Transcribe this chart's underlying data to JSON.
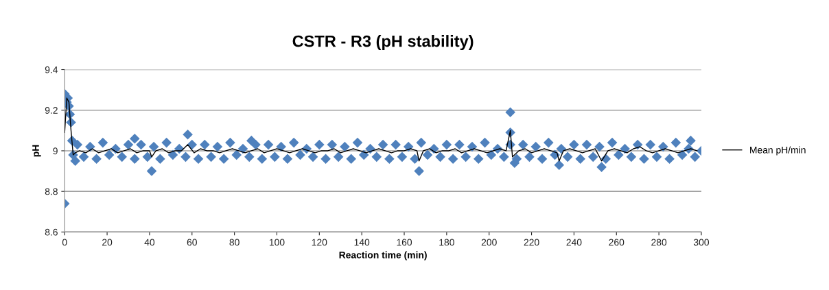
{
  "chart_data": {
    "type": "scatter",
    "title": "CSTR - R3 (pH stability)",
    "xlabel": "Reaction time (min)",
    "ylabel": "pH",
    "xlim": [
      0,
      300
    ],
    "xticks": [
      0,
      20,
      40,
      60,
      80,
      100,
      120,
      140,
      160,
      180,
      200,
      220,
      240,
      260,
      280,
      300
    ],
    "ylim": [
      8.6,
      9.4
    ],
    "yticks": [
      8.6,
      8.8,
      {
        "value": 9,
        "label": "9"
      },
      9.2,
      9.4
    ],
    "grid": "y",
    "legend": "right",
    "series": [
      {
        "color": "#4f81bd",
        "marker": "diamond",
        "x": [
          6,
          9,
          12,
          15,
          18,
          21,
          24,
          27,
          30,
          33,
          36,
          39,
          42,
          45,
          48,
          51,
          54,
          57,
          60,
          63,
          66,
          69,
          72,
          75,
          78,
          81,
          84,
          87,
          90,
          93,
          96,
          99,
          102,
          105,
          108,
          111,
          114,
          117,
          120,
          123,
          126,
          129,
          132,
          135,
          138,
          141,
          144,
          147,
          150,
          153,
          156,
          159,
          162,
          165,
          168,
          171,
          174,
          177,
          180,
          183,
          186,
          189,
          192,
          195,
          198,
          201,
          204,
          207,
          210,
          213,
          216,
          219,
          222,
          225,
          228,
          231,
          234,
          237,
          240,
          243,
          246,
          249,
          252,
          255,
          258,
          261,
          264,
          267,
          270,
          273,
          276,
          279,
          282,
          285,
          288,
          291,
          294,
          297,
          0,
          0,
          1,
          1.5,
          2,
          2.5,
          3,
          3.5,
          4,
          5,
          41,
          58,
          33,
          88,
          167,
          210,
          210,
          212,
          233,
          253,
          295,
          300
        ],
        "values": [
          9.03,
          8.97,
          9.02,
          8.96,
          9.04,
          8.98,
          9.01,
          8.97,
          9.03,
          8.96,
          9.03,
          8.97,
          9.02,
          8.96,
          9.04,
          8.98,
          9.01,
          8.97,
          9.03,
          8.96,
          9.03,
          8.97,
          9.02,
          8.96,
          9.04,
          8.98,
          9.01,
          8.97,
          9.03,
          8.96,
          9.03,
          8.97,
          9.02,
          8.96,
          9.04,
          8.98,
          9.01,
          8.97,
          9.03,
          8.96,
          9.03,
          8.97,
          9.02,
          8.96,
          9.04,
          8.98,
          9.01,
          8.97,
          9.03,
          8.96,
          9.03,
          8.97,
          9.02,
          8.96,
          9.04,
          8.98,
          9.01,
          8.97,
          9.03,
          8.96,
          9.03,
          8.97,
          9.02,
          8.96,
          9.04,
          8.98,
          9.01,
          8.97,
          9.03,
          8.96,
          9.03,
          8.97,
          9.02,
          8.96,
          9.04,
          8.98,
          9.01,
          8.97,
          9.03,
          8.96,
          9.03,
          8.97,
          9.02,
          8.96,
          9.04,
          8.98,
          9.01,
          8.97,
          9.03,
          8.96,
          9.03,
          8.97,
          9.02,
          8.96,
          9.04,
          8.98,
          9.01,
          8.97,
          9.28,
          8.74,
          9.24,
          9.26,
          9.22,
          9.18,
          9.14,
          9.05,
          8.98,
          8.95,
          8.9,
          9.08,
          9.06,
          9.05,
          8.9,
          9.19,
          9.09,
          8.94,
          8.93,
          8.92,
          9.05,
          9.0
        ]
      },
      {
        "type": "line",
        "name": "Mean pH/min",
        "color": "#000000",
        "marker": "none",
        "line_style": "solid",
        "x": [
          0,
          1,
          2,
          3,
          4,
          5,
          7,
          10,
          13,
          16,
          19,
          22,
          25,
          28,
          31,
          34,
          37,
          40,
          41,
          43,
          46,
          49,
          52,
          55,
          58,
          61,
          64,
          67,
          70,
          73,
          76,
          79,
          82,
          85,
          88,
          91,
          94,
          97,
          100,
          103,
          106,
          109,
          112,
          115,
          118,
          121,
          124,
          127,
          130,
          133,
          136,
          139,
          142,
          145,
          148,
          151,
          154,
          157,
          160,
          163,
          166,
          167,
          169,
          172,
          175,
          178,
          181,
          184,
          187,
          190,
          193,
          196,
          199,
          202,
          205,
          208,
          210,
          211,
          214,
          217,
          220,
          223,
          226,
          229,
          232,
          233,
          235,
          238,
          241,
          244,
          247,
          250,
          253,
          256,
          259,
          262,
          265,
          268,
          271,
          274,
          277,
          280,
          283,
          286,
          289,
          292,
          295,
          298
        ],
        "values": [
          9.09,
          9.26,
          9.24,
          9.1,
          8.98,
          8.99,
          9.0,
          8.99,
          9.01,
          8.99,
          9.0,
          9.01,
          8.99,
          9.0,
          9.01,
          8.99,
          9.0,
          9.0,
          8.97,
          9.0,
          9.01,
          8.99,
          9.0,
          9.0,
          9.03,
          8.99,
          9.01,
          9.0,
          9.0,
          8.99,
          9.0,
          9.01,
          9.0,
          8.99,
          9.0,
          9.01,
          8.99,
          9.0,
          9.01,
          9.0,
          8.99,
          9.0,
          9.01,
          9.0,
          8.99,
          9.0,
          9.0,
          9.01,
          8.99,
          9.0,
          9.01,
          9.0,
          8.99,
          9.0,
          9.01,
          9.0,
          8.99,
          9.0,
          9.0,
          9.01,
          9.0,
          8.95,
          9.0,
          9.01,
          8.99,
          9.0,
          9.0,
          9.01,
          8.99,
          9.0,
          9.01,
          9.0,
          8.99,
          9.0,
          9.01,
          9.0,
          9.1,
          8.97,
          9.0,
          9.01,
          8.99,
          9.0,
          9.01,
          9.0,
          8.99,
          8.95,
          9.0,
          9.01,
          9.0,
          8.99,
          9.0,
          9.01,
          8.95,
          9.0,
          9.01,
          9.0,
          8.99,
          9.01,
          9.02,
          9.0,
          8.99,
          9.0,
          9.01,
          9.0,
          8.99,
          9.0,
          9.01,
          9.0
        ]
      }
    ]
  }
}
